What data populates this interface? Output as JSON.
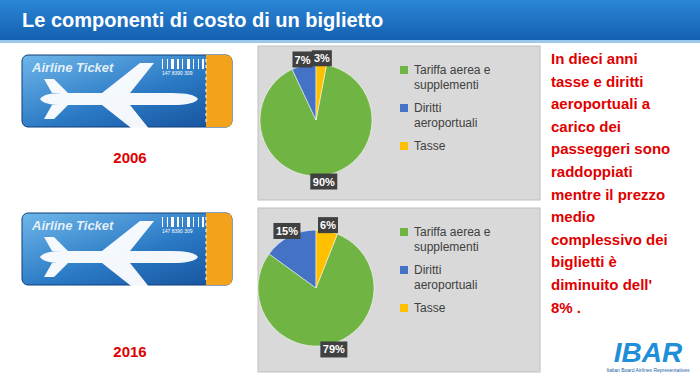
{
  "title": "Le componenti di costo di un biglietto",
  "tickets": [
    {
      "text": "Airline Ticket",
      "code": "147 8390 309"
    },
    {
      "text": "Airline Ticket",
      "code": "147 8390 309"
    }
  ],
  "chart_data": [
    {
      "type": "pie",
      "title": "2006",
      "categories": [
        "Tariffa aerea e supplementi",
        "Diritti aeroportuali",
        "Tasse"
      ],
      "values": [
        90,
        7,
        3
      ],
      "value_labels": [
        "90%",
        "7%",
        "3%"
      ],
      "colors": [
        "#70b443",
        "#4472c4",
        "#ffc000"
      ],
      "data_labels": true,
      "legend": "right"
    },
    {
      "type": "pie",
      "title": "2016",
      "categories": [
        "Tariffa aerea e supplementi",
        "Diritti aeroportuali",
        "Tasse"
      ],
      "values": [
        79,
        15,
        6
      ],
      "value_labels": [
        "79%",
        "15%",
        "6%"
      ],
      "colors": [
        "#70b443",
        "#4472c4",
        "#ffc000"
      ],
      "data_labels": true,
      "legend": "right"
    }
  ],
  "note": [
    "In dieci anni",
    "tasse e diritti",
    "aeroportuali a",
    "carico dei",
    "passeggeri sono",
    "raddoppiati",
    "mentre il prezzo",
    "medio",
    "complessivo dei",
    "biglietti è",
    "diminuito dell'",
    "8% ."
  ],
  "logo": {
    "text": "IBAR",
    "caption": "Italian Board Airlines Representatives"
  }
}
